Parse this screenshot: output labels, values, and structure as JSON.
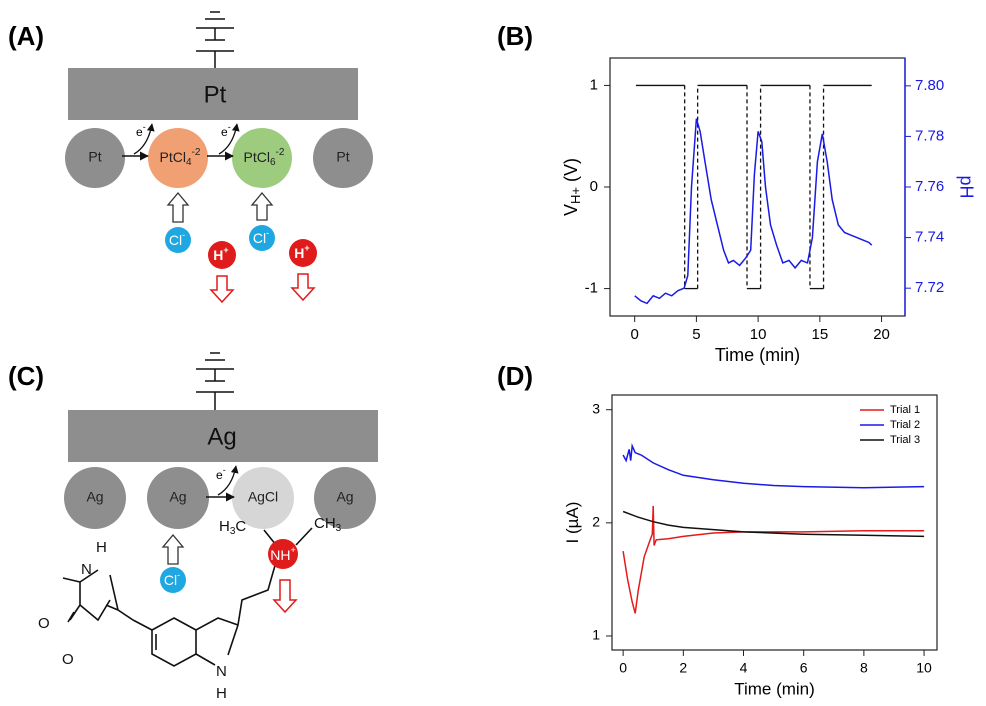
{
  "panel_a": {
    "label": "(A)",
    "electrode": "Pt",
    "particle_left": "Pt",
    "particle_right": "Pt",
    "complex1": {
      "base": "PtCl",
      "sub": "4",
      "sup": "-2"
    },
    "complex2": {
      "base": "PtCl",
      "sub": "6",
      "sup": "-2"
    },
    "electron1": {
      "base": "e",
      "sup": "-"
    },
    "electron2": {
      "base": "e",
      "sup": "-"
    },
    "chloride1": {
      "base": "Cl",
      "sup": "-"
    },
    "chloride2": {
      "base": "Cl",
      "sup": "-"
    },
    "proton1": {
      "base": "H",
      "sup": "+"
    },
    "proton2": {
      "base": "H",
      "sup": "+"
    }
  },
  "panel_c": {
    "label": "(C)",
    "electrode": "Ag",
    "particles": [
      "Ag",
      "Ag",
      "AgCl",
      "Ag"
    ],
    "electron": {
      "base": "e",
      "sup": "-"
    },
    "chloride": {
      "base": "Cl",
      "sup": "-"
    },
    "molecule": {
      "methyl_left": {
        "a": "H",
        "sub": "3",
        "b": "C"
      },
      "amine": {
        "base": "NH",
        "sup": "+"
      },
      "methyl_right": {
        "a": "CH",
        "sub": "3"
      },
      "ring_o1": "O",
      "ring_nh_n": "N",
      "ring_nh_h": "H",
      "ring_o2": "O",
      "indole_n": "N",
      "indole_h": "H"
    }
  },
  "chart_data": [
    {
      "type": "line",
      "panel_label": "(B)",
      "x_label": "Time (min)",
      "y_label": "V",
      "y_label_sub": "H+",
      "y_label_unit": "(V)",
      "y2_label": "pH",
      "y2_color": "#1a1ae6",
      "xlim": [
        -2,
        21.9
      ],
      "xticks": [
        0,
        5,
        10,
        15,
        20
      ],
      "ylim": [
        -1.27,
        1.27
      ],
      "yticks": [
        -1,
        0,
        1
      ],
      "y2lim": [
        7.709,
        7.811
      ],
      "y2ticks": [
        7.72,
        7.74,
        7.76,
        7.78,
        {
          "value": 7.8,
          "label": "7.80"
        }
      ],
      "series": [
        {
          "color": "#111111",
          "step": true,
          "x": [
            0.1,
            4.05,
            4.05,
            5.1,
            5.1,
            9.1,
            9.1,
            10.2,
            10.2,
            14.2,
            14.2,
            15.3,
            15.3,
            19.2
          ],
          "values": [
            1,
            1,
            -1,
            -1,
            1,
            1,
            -1,
            -1,
            1,
            1,
            -1,
            -1,
            1,
            1
          ]
        },
        {
          "color": "#1a1ae6",
          "axis": "y2",
          "x": [
            0,
            0.5,
            1,
            1.5,
            2,
            2.5,
            3,
            3.5,
            4,
            4.3,
            4.6,
            5,
            5.3,
            5.7,
            6.2,
            6.7,
            7.2,
            7.6,
            8,
            8.5,
            9,
            9.4,
            9.7,
            10,
            10.3,
            10.6,
            11,
            11.5,
            12,
            12.5,
            13,
            13.5,
            14,
            14.4,
            14.8,
            15.2,
            15.6,
            16,
            16.5,
            17,
            17.5,
            18,
            18.5,
            19,
            19.2
          ],
          "values": [
            7.717,
            7.715,
            7.714,
            7.717,
            7.716,
            7.718,
            7.717,
            7.719,
            7.72,
            7.725,
            7.76,
            7.787,
            7.782,
            7.77,
            7.755,
            7.745,
            7.735,
            7.73,
            7.731,
            7.729,
            7.732,
            7.735,
            7.765,
            7.782,
            7.778,
            7.76,
            7.745,
            7.737,
            7.73,
            7.731,
            7.728,
            7.731,
            7.73,
            7.74,
            7.77,
            7.781,
            7.77,
            7.755,
            7.745,
            7.742,
            7.741,
            7.74,
            7.739,
            7.738,
            7.737
          ]
        }
      ]
    },
    {
      "type": "line",
      "panel_label": "(D)",
      "x_label": "Time (min)",
      "y_label": "I (µA)",
      "xlim": [
        -0.37,
        10.43
      ],
      "xticks": [
        0,
        2,
        4,
        6,
        8,
        10
      ],
      "ylim": [
        0.876,
        3.13
      ],
      "yticks": [
        1,
        2,
        3
      ],
      "legend": "top-right",
      "series": [
        {
          "name": "Trial 1",
          "color": "#e61a1a",
          "x": [
            0,
            0.15,
            0.3,
            0.4,
            0.5,
            0.7,
            0.9,
            0.97,
            1.0,
            1.03,
            1.1,
            1.5,
            2,
            3,
            4,
            6,
            8,
            10
          ],
          "values": [
            1.75,
            1.5,
            1.3,
            1.2,
            1.4,
            1.7,
            1.85,
            1.9,
            2.15,
            1.8,
            1.85,
            1.86,
            1.88,
            1.91,
            1.92,
            1.92,
            1.93,
            1.93
          ]
        },
        {
          "name": "Trial 2",
          "color": "#1a1ae6",
          "x": [
            0,
            0.1,
            0.2,
            0.25,
            0.3,
            0.4,
            0.6,
            1,
            1.5,
            2,
            3,
            4,
            5,
            6,
            8,
            10
          ],
          "values": [
            2.6,
            2.55,
            2.65,
            2.55,
            2.68,
            2.62,
            2.6,
            2.53,
            2.47,
            2.42,
            2.38,
            2.35,
            2.33,
            2.32,
            2.31,
            2.32
          ]
        },
        {
          "name": "Trial 3",
          "color": "#111111",
          "x": [
            0,
            0.5,
            1,
            1.5,
            2,
            3,
            4,
            6,
            8,
            10
          ],
          "values": [
            2.1,
            2.05,
            2.01,
            1.98,
            1.96,
            1.94,
            1.92,
            1.9,
            1.89,
            1.88
          ]
        }
      ]
    }
  ]
}
